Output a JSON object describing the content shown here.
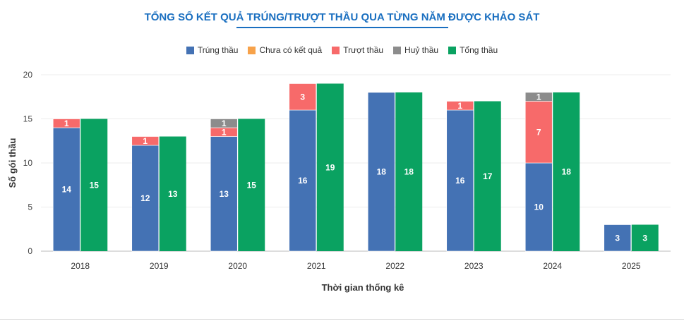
{
  "chart_data": {
    "type": "bar",
    "title": "TỔNG SỐ KẾT QUẢ TRÚNG/TRƯỢT THẦU QUA TỪNG NĂM ĐƯỢC KHẢO SÁT",
    "xlabel": "Thời gian thống kê",
    "ylabel": "Số gói thầu",
    "ylim": [
      0,
      20
    ],
    "yticks": [
      0,
      5,
      10,
      15,
      20
    ],
    "categories": [
      "2018",
      "2019",
      "2020",
      "2021",
      "2022",
      "2023",
      "2024",
      "2025"
    ],
    "legend_position": "top",
    "grid": true,
    "stacked_series": [
      {
        "name": "Trúng thầu",
        "color": "#4472b4",
        "values": [
          14,
          12,
          13,
          16,
          18,
          16,
          10,
          3
        ]
      },
      {
        "name": "Chưa có kết quả",
        "color": "#f7a24a",
        "values": [
          0,
          0,
          0,
          0,
          0,
          0,
          0,
          0
        ]
      },
      {
        "name": "Trượt thầu",
        "color": "#f76a6a",
        "values": [
          1,
          1,
          1,
          3,
          0,
          1,
          7,
          0
        ]
      },
      {
        "name": "Huỷ thầu",
        "color": "#8c8c8c",
        "values": [
          0,
          0,
          1,
          0,
          0,
          0,
          1,
          0
        ]
      }
    ],
    "total_series": {
      "name": "Tổng thầu",
      "color": "#0aa261",
      "values": [
        15,
        13,
        15,
        19,
        18,
        17,
        18,
        3
      ]
    }
  }
}
